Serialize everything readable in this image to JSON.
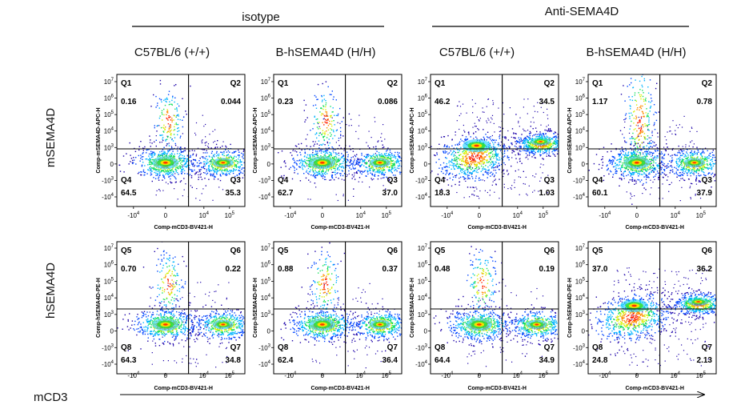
{
  "chart_data": {
    "type": "scatter",
    "group_labels": [
      "isotype",
      "Anti-SEMA4D"
    ],
    "columns": [
      "C57BL/6 (+/+)",
      "B-hSEMA4D (H/H)",
      "C57BL/6 (+/+)",
      "B-hSEMA4D (H/H)"
    ],
    "row_labels": [
      "mSEMA4D",
      "hSEMA4D"
    ],
    "bottom_label": "mCD3",
    "x_axis_label": "Comp-mCD3-BV421-H",
    "y_axis_labels": [
      "Comp-mSEMA4D-APC-H",
      "Comp-hSEMA4D-PE-H"
    ],
    "x_ticks": [
      "-10^4",
      "0",
      "10^4",
      "10^5"
    ],
    "y_ticks": [
      "10^7",
      "10^6",
      "10^5",
      "10^4",
      "10^3",
      "0",
      "-10^3",
      "-10^4"
    ],
    "quadrant_names": [
      [
        "Q1",
        "Q2",
        "Q4",
        "Q3"
      ],
      [
        "Q5",
        "Q6",
        "Q8",
        "Q7"
      ]
    ],
    "panels": [
      {
        "row": 0,
        "col": 0,
        "values": [
          "0.16",
          "0.044",
          "64.5",
          "35.3"
        ]
      },
      {
        "row": 0,
        "col": 1,
        "values": [
          "0.23",
          "0.086",
          "62.7",
          "37.0"
        ]
      },
      {
        "row": 0,
        "col": 2,
        "values": [
          "46.2",
          "34.5",
          "18.3",
          "1.03"
        ]
      },
      {
        "row": 0,
        "col": 3,
        "values": [
          "1.17",
          "0.78",
          "60.1",
          "37.9"
        ]
      },
      {
        "row": 1,
        "col": 0,
        "values": [
          "0.70",
          "0.22",
          "64.3",
          "34.8"
        ]
      },
      {
        "row": 1,
        "col": 1,
        "values": [
          "0.88",
          "0.37",
          "62.4",
          "36.4"
        ]
      },
      {
        "row": 1,
        "col": 2,
        "values": [
          "0.48",
          "0.19",
          "64.4",
          "34.9"
        ]
      },
      {
        "row": 1,
        "col": 3,
        "values": [
          "37.0",
          "36.2",
          "24.8",
          "2.13"
        ]
      }
    ]
  }
}
